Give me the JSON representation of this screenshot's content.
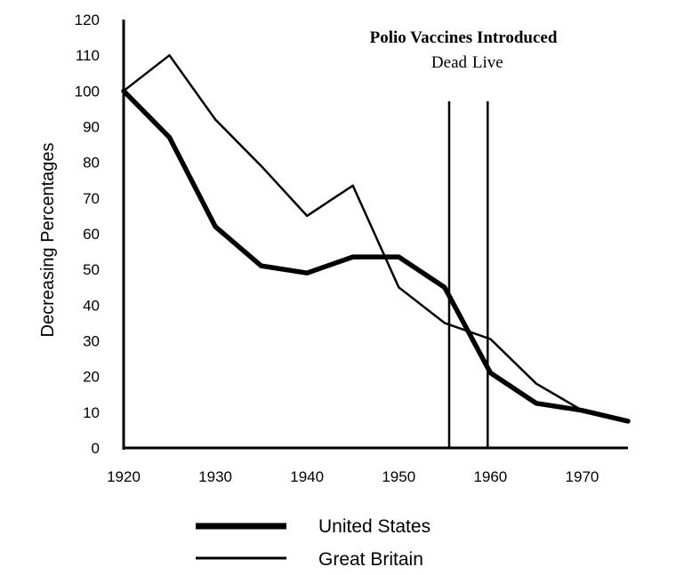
{
  "chart_data": {
    "type": "line",
    "title": "",
    "xlabel": "",
    "ylabel": "Decreasing Percentages",
    "xlim": [
      1920,
      1975
    ],
    "ylim": [
      0,
      120
    ],
    "x_ticks": [
      "1920",
      "1930",
      "1940",
      "1950",
      "1960",
      "1970"
    ],
    "y_ticks": [
      "0",
      "10",
      "20",
      "30",
      "40",
      "50",
      "60",
      "70",
      "80",
      "90",
      "100",
      "110",
      "120"
    ],
    "series": [
      {
        "name": "United States",
        "style": "thick",
        "color": "#000000",
        "points": [
          [
            1920,
            100
          ],
          [
            1925,
            87
          ],
          [
            1930,
            62
          ],
          [
            1935,
            51
          ],
          [
            1940,
            49
          ],
          [
            1945,
            53.5
          ],
          [
            1950,
            53.5
          ],
          [
            1955,
            45
          ],
          [
            1960,
            21
          ],
          [
            1965,
            12.5
          ],
          [
            1970,
            10.5
          ],
          [
            1975,
            7.5
          ]
        ]
      },
      {
        "name": "Great Britain",
        "style": "thin",
        "color": "#000000",
        "points": [
          [
            1920,
            100
          ],
          [
            1925,
            110
          ],
          [
            1930,
            92
          ],
          [
            1935,
            79
          ],
          [
            1940,
            65
          ],
          [
            1945,
            73.5
          ],
          [
            1950,
            45
          ],
          [
            1955,
            35
          ],
          [
            1960,
            30.5
          ],
          [
            1965,
            18
          ],
          [
            1970,
            10.5
          ],
          [
            1975,
            7.5
          ]
        ]
      }
    ],
    "annotation": {
      "title": "Polio Vaccines Introduced",
      "markers": [
        {
          "label": "Dead",
          "x": 1955.5
        },
        {
          "label": "Live",
          "x": 1959.7
        }
      ]
    },
    "legend": {
      "placement": "bottom",
      "entries": [
        "United States",
        "Great Britain"
      ]
    },
    "grid": false
  }
}
